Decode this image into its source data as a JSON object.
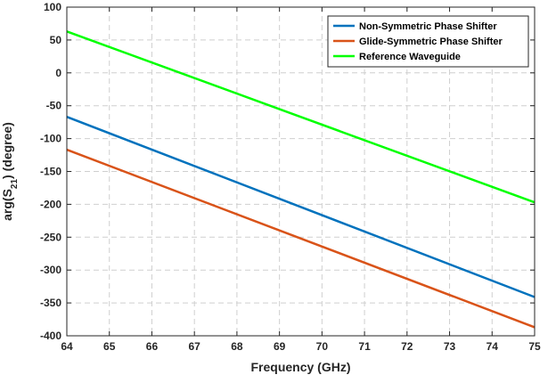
{
  "chart_data": {
    "type": "line",
    "title": "",
    "xlabel": "Frequency (GHz)",
    "ylabel_parts": {
      "prefix": "arg(S",
      "subscript": "21",
      "suffix": ") (degree)"
    },
    "xlim": [
      64,
      75
    ],
    "ylim": [
      -400,
      100
    ],
    "xticks": [
      "64",
      "65",
      "66",
      "67",
      "68",
      "69",
      "70",
      "71",
      "72",
      "73",
      "74",
      "75"
    ],
    "yticks": [
      "100",
      "50",
      "0",
      "-50",
      "-100",
      "-150",
      "-200",
      "-250",
      "-300",
      "-350",
      "-400"
    ],
    "grid": true,
    "legend_position": "top-right",
    "series": [
      {
        "name": "Non-Symmetric Phase Shifter",
        "color": "#0072BD",
        "x": [
          64,
          75
        ],
        "y": [
          -67,
          -341
        ]
      },
      {
        "name": "Glide-Symmetric Phase Shifter",
        "color": "#D95319",
        "x": [
          64,
          75
        ],
        "y": [
          -117,
          -387
        ]
      },
      {
        "name": "Reference Waveguide",
        "color": "#00FF00",
        "x": [
          64,
          75
        ],
        "y": [
          63,
          -197
        ]
      }
    ]
  }
}
